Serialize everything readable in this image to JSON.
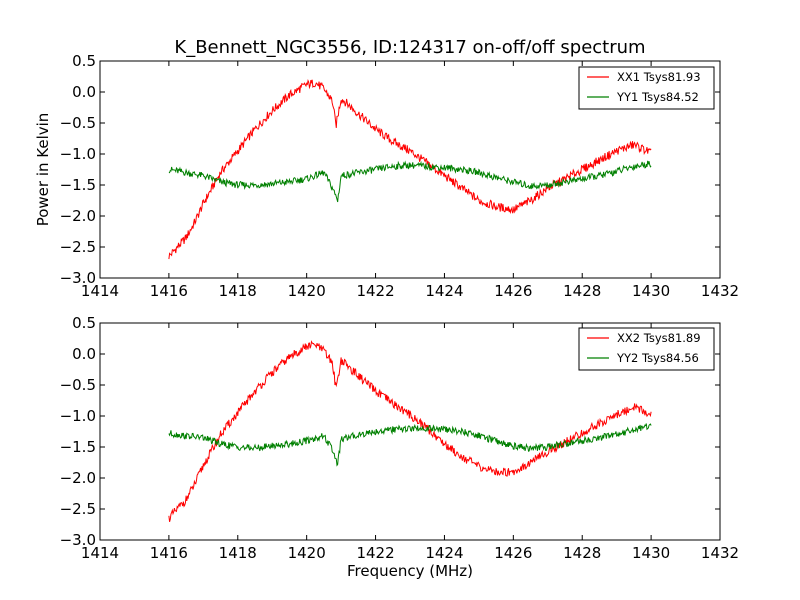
{
  "chart_data": [
    {
      "type": "line",
      "title": "K_Bennett_NGC3556, ID:124317 on-off/off spectrum",
      "xlabel": "",
      "ylabel": "Power in Kelvin",
      "xlim": [
        1414,
        1432
      ],
      "ylim": [
        -3.0,
        0.5
      ],
      "xticks": [
        "1414",
        "1416",
        "1418",
        "1420",
        "1422",
        "1424",
        "1426",
        "1428",
        "1430",
        "1432"
      ],
      "yticks": [
        "0.5",
        "0.0",
        "−0.5",
        "−1.0",
        "−1.5",
        "−2.0",
        "−2.5",
        "−3.0"
      ],
      "grid": false,
      "legend_position": "top-right",
      "series": [
        {
          "name": "XX1 Tsys81.93",
          "color": "#ff0000",
          "x": [
            1416.0,
            1416.25,
            1416.5,
            1416.75,
            1417.0,
            1417.25,
            1417.5,
            1418.0,
            1418.5,
            1419.0,
            1419.5,
            1420.0,
            1420.25,
            1420.5,
            1420.75,
            1420.85,
            1421.0,
            1421.5,
            1422.0,
            1422.5,
            1423.0,
            1423.5,
            1424.0,
            1424.5,
            1425.0,
            1425.5,
            1426.0,
            1426.5,
            1427.0,
            1427.5,
            1428.0,
            1428.5,
            1429.0,
            1429.5,
            1430.0
          ],
          "y": [
            -2.65,
            -2.5,
            -2.35,
            -2.1,
            -1.8,
            -1.55,
            -1.3,
            -0.95,
            -0.6,
            -0.3,
            -0.05,
            0.12,
            0.15,
            0.05,
            -0.15,
            -0.55,
            -0.1,
            -0.35,
            -0.6,
            -0.8,
            -0.95,
            -1.15,
            -1.35,
            -1.55,
            -1.75,
            -1.85,
            -1.9,
            -1.75,
            -1.55,
            -1.4,
            -1.25,
            -1.1,
            -0.95,
            -0.85,
            -0.98
          ]
        },
        {
          "name": "YY1 Tsys84.52",
          "color": "#008000",
          "x": [
            1416.0,
            1416.5,
            1417.0,
            1417.5,
            1418.0,
            1418.5,
            1419.0,
            1419.5,
            1420.0,
            1420.5,
            1420.75,
            1420.9,
            1421.0,
            1421.5,
            1422.0,
            1422.5,
            1423.0,
            1423.5,
            1424.0,
            1424.5,
            1425.0,
            1425.5,
            1426.0,
            1426.5,
            1427.0,
            1427.5,
            1428.0,
            1428.5,
            1429.0,
            1429.5,
            1430.0
          ],
          "y": [
            -1.25,
            -1.3,
            -1.35,
            -1.45,
            -1.5,
            -1.5,
            -1.48,
            -1.45,
            -1.4,
            -1.3,
            -1.55,
            -1.75,
            -1.35,
            -1.3,
            -1.25,
            -1.2,
            -1.18,
            -1.2,
            -1.22,
            -1.25,
            -1.3,
            -1.38,
            -1.45,
            -1.52,
            -1.5,
            -1.45,
            -1.4,
            -1.35,
            -1.28,
            -1.2,
            -1.15
          ]
        }
      ]
    },
    {
      "type": "line",
      "title": "",
      "xlabel": "Frequency (MHz)",
      "ylabel": "",
      "xlim": [
        1414,
        1432
      ],
      "ylim": [
        -3.0,
        0.5
      ],
      "xticks": [
        "1414",
        "1416",
        "1418",
        "1420",
        "1422",
        "1424",
        "1426",
        "1428",
        "1430",
        "1432"
      ],
      "yticks": [
        "0.5",
        "0.0",
        "−0.5",
        "−1.0",
        "−1.5",
        "−2.0",
        "−2.5",
        "−3.0"
      ],
      "grid": false,
      "legend_position": "top-right",
      "series": [
        {
          "name": "XX2 Tsys81.89",
          "color": "#ff0000",
          "x": [
            1416.0,
            1416.25,
            1416.5,
            1416.75,
            1417.0,
            1417.25,
            1417.5,
            1418.0,
            1418.5,
            1419.0,
            1419.5,
            1420.0,
            1420.25,
            1420.5,
            1420.75,
            1420.85,
            1421.0,
            1421.5,
            1422.0,
            1422.5,
            1423.0,
            1423.5,
            1424.0,
            1424.5,
            1425.0,
            1425.5,
            1426.0,
            1426.5,
            1427.0,
            1427.5,
            1428.0,
            1428.5,
            1429.0,
            1429.5,
            1430.0
          ],
          "y": [
            -2.65,
            -2.5,
            -2.35,
            -2.1,
            -1.8,
            -1.55,
            -1.3,
            -0.95,
            -0.6,
            -0.3,
            -0.05,
            0.12,
            0.15,
            0.05,
            -0.15,
            -0.55,
            -0.1,
            -0.35,
            -0.6,
            -0.8,
            -0.98,
            -1.2,
            -1.45,
            -1.65,
            -1.82,
            -1.9,
            -1.9,
            -1.75,
            -1.58,
            -1.42,
            -1.28,
            -1.12,
            -0.98,
            -0.85,
            -0.98
          ]
        },
        {
          "name": "YY2 Tsys84.56",
          "color": "#008000",
          "x": [
            1416.0,
            1416.5,
            1417.0,
            1417.5,
            1418.0,
            1418.5,
            1419.0,
            1419.5,
            1420.0,
            1420.5,
            1420.75,
            1420.9,
            1421.0,
            1421.5,
            1422.0,
            1422.5,
            1423.0,
            1423.5,
            1424.0,
            1424.5,
            1425.0,
            1425.5,
            1426.0,
            1426.5,
            1427.0,
            1427.5,
            1428.0,
            1428.5,
            1429.0,
            1429.5,
            1430.0
          ],
          "y": [
            -1.28,
            -1.32,
            -1.35,
            -1.45,
            -1.5,
            -1.52,
            -1.48,
            -1.45,
            -1.4,
            -1.32,
            -1.55,
            -1.78,
            -1.38,
            -1.3,
            -1.25,
            -1.22,
            -1.2,
            -1.2,
            -1.22,
            -1.25,
            -1.32,
            -1.4,
            -1.48,
            -1.52,
            -1.5,
            -1.45,
            -1.4,
            -1.35,
            -1.3,
            -1.22,
            -1.15
          ]
        }
      ]
    }
  ]
}
